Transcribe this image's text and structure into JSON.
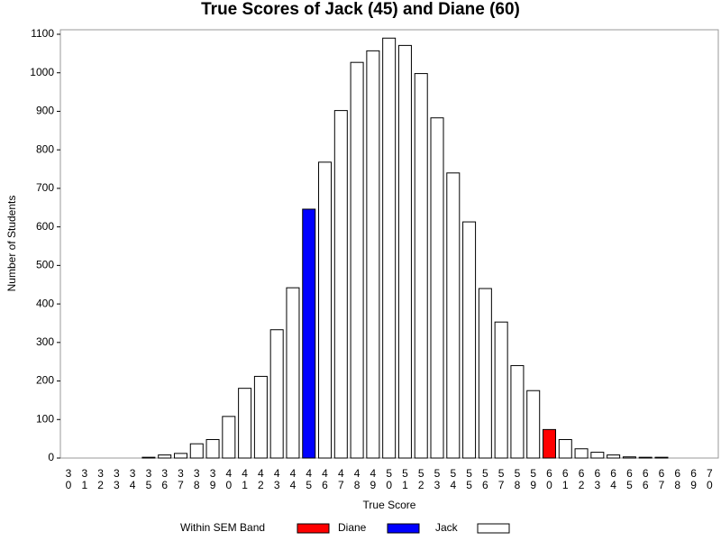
{
  "chart_data": {
    "type": "bar",
    "title": "True Scores of Jack (45) and Diane (60)",
    "x_label": "True Score",
    "y_label": "Number of Students",
    "legend_title": "Within SEM Band",
    "categories": [
      "30",
      "31",
      "32",
      "33",
      "34",
      "35",
      "36",
      "37",
      "38",
      "39",
      "40",
      "41",
      "42",
      "43",
      "44",
      "45",
      "46",
      "47",
      "48",
      "49",
      "50",
      "51",
      "52",
      "53",
      "54",
      "55",
      "56",
      "57",
      "58",
      "59",
      "60",
      "61",
      "62",
      "63",
      "64",
      "65",
      "66",
      "67",
      "68",
      "69",
      "70"
    ],
    "series": [
      {
        "name": "Diane",
        "color": "#ff0000",
        "values": [
          null,
          null,
          null,
          null,
          null,
          null,
          null,
          null,
          null,
          null,
          null,
          null,
          null,
          null,
          null,
          null,
          null,
          null,
          null,
          null,
          null,
          null,
          null,
          null,
          null,
          null,
          null,
          null,
          null,
          null,
          74,
          null,
          null,
          null,
          null,
          null,
          null,
          null,
          null,
          null,
          null
        ]
      },
      {
        "name": "Jack",
        "color": "#0000ff",
        "values": [
          null,
          null,
          null,
          null,
          null,
          null,
          null,
          null,
          null,
          null,
          null,
          null,
          null,
          null,
          null,
          646,
          null,
          null,
          null,
          null,
          null,
          null,
          null,
          null,
          null,
          null,
          null,
          null,
          null,
          null,
          null,
          null,
          null,
          null,
          null,
          null,
          null,
          null,
          null,
          null,
          null
        ]
      },
      {
        "name": null,
        "color": "#ffffff",
        "values": [
          0,
          0,
          0,
          0,
          0,
          2,
          8,
          12,
          37,
          48,
          108,
          181,
          212,
          333,
          442,
          null,
          768,
          902,
          1027,
          1057,
          1090,
          1071,
          998,
          883,
          740,
          613,
          440,
          353,
          240,
          175,
          null,
          48,
          24,
          15,
          8,
          3,
          2,
          2,
          0,
          0,
          0
        ]
      }
    ],
    "ylim": [
      0,
      1100
    ],
    "yticks": [
      0,
      100,
      200,
      300,
      400,
      500,
      600,
      700,
      800,
      900,
      1000,
      1100
    ]
  }
}
